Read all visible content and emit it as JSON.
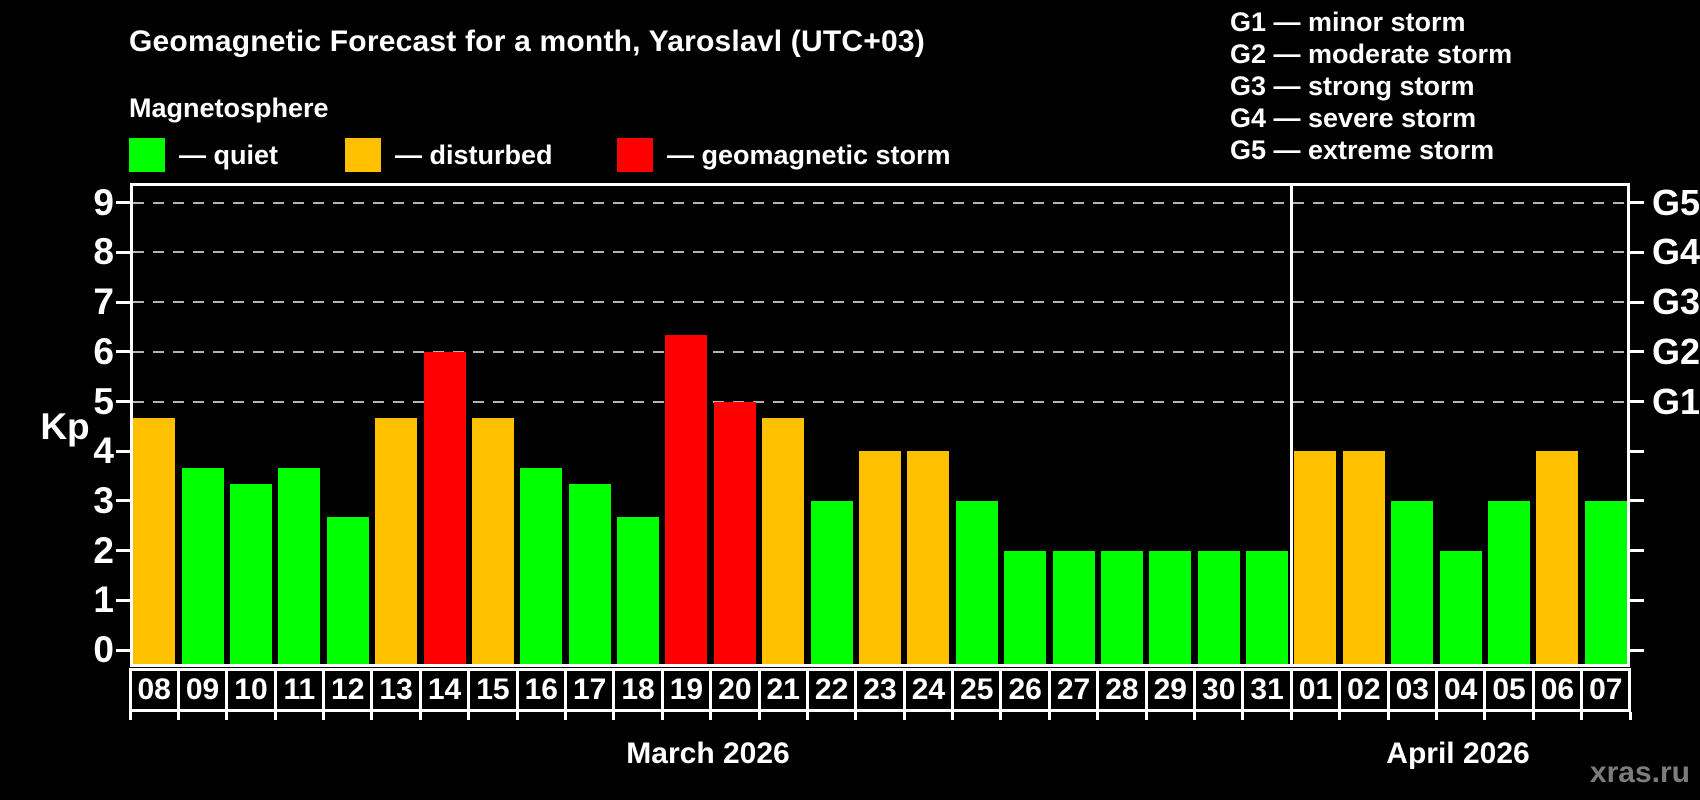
{
  "header": {
    "title": "Geomagnetic Forecast for a month, Yaroslavl (UTC+03)",
    "subtitle": "Magnetosphere"
  },
  "legend": {
    "items": [
      {
        "key": "quiet",
        "label": "— quiet",
        "color": "#00FF00"
      },
      {
        "key": "disturbed",
        "label": "— disturbed",
        "color": "#FFC000"
      },
      {
        "key": "storm",
        "label": "— geomagnetic storm",
        "color": "#FF0000"
      }
    ]
  },
  "g_legend": {
    "lines": [
      "G1 — minor storm",
      "G2 — moderate storm",
      "G3 — strong storm",
      "G4 — severe storm",
      "G5 — extreme storm"
    ]
  },
  "watermark": "xras.ru",
  "chart_data": {
    "type": "bar",
    "title": "Geomagnetic Forecast for a month, Yaroslavl (UTC+03)",
    "ylabel": "Kp",
    "ylim": [
      0,
      9
    ],
    "yticks": [
      0,
      1,
      2,
      3,
      4,
      5,
      6,
      7,
      8,
      9
    ],
    "grid_kp": [
      5,
      6,
      7,
      8,
      9
    ],
    "grid_on": true,
    "legend_position": "top-left",
    "g_scale": [
      {
        "label": "G1",
        "kp": 5
      },
      {
        "label": "G2",
        "kp": 6
      },
      {
        "label": "G3",
        "kp": 7
      },
      {
        "label": "G4",
        "kp": 8
      },
      {
        "label": "G5",
        "kp": 9
      }
    ],
    "status_colors": {
      "quiet": "#00FF00",
      "disturbed": "#FFC000",
      "storm": "#FF0000"
    },
    "months": [
      {
        "label": "March 2026",
        "days": [
          {
            "day": "08",
            "kp": 4.67,
            "status": "disturbed"
          },
          {
            "day": "09",
            "kp": 3.67,
            "status": "quiet"
          },
          {
            "day": "10",
            "kp": 3.33,
            "status": "quiet"
          },
          {
            "day": "11",
            "kp": 3.67,
            "status": "quiet"
          },
          {
            "day": "12",
            "kp": 2.67,
            "status": "quiet"
          },
          {
            "day": "13",
            "kp": 4.67,
            "status": "disturbed"
          },
          {
            "day": "14",
            "kp": 6.0,
            "status": "storm"
          },
          {
            "day": "15",
            "kp": 4.67,
            "status": "disturbed"
          },
          {
            "day": "16",
            "kp": 3.67,
            "status": "quiet"
          },
          {
            "day": "17",
            "kp": 3.33,
            "status": "quiet"
          },
          {
            "day": "18",
            "kp": 2.67,
            "status": "quiet"
          },
          {
            "day": "19",
            "kp": 6.33,
            "status": "storm"
          },
          {
            "day": "20",
            "kp": 5.0,
            "status": "storm"
          },
          {
            "day": "21",
            "kp": 4.67,
            "status": "disturbed"
          },
          {
            "day": "22",
            "kp": 3.0,
            "status": "quiet"
          },
          {
            "day": "23",
            "kp": 4.0,
            "status": "disturbed"
          },
          {
            "day": "24",
            "kp": 4.0,
            "status": "disturbed"
          },
          {
            "day": "25",
            "kp": 3.0,
            "status": "quiet"
          },
          {
            "day": "26",
            "kp": 2.0,
            "status": "quiet"
          },
          {
            "day": "27",
            "kp": 2.0,
            "status": "quiet"
          },
          {
            "day": "28",
            "kp": 2.0,
            "status": "quiet"
          },
          {
            "day": "29",
            "kp": 2.0,
            "status": "quiet"
          },
          {
            "day": "30",
            "kp": 2.0,
            "status": "quiet"
          },
          {
            "day": "31",
            "kp": 2.0,
            "status": "quiet"
          }
        ]
      },
      {
        "label": "April 2026",
        "days": [
          {
            "day": "01",
            "kp": 4.0,
            "status": "disturbed"
          },
          {
            "day": "02",
            "kp": 4.0,
            "status": "disturbed"
          },
          {
            "day": "03",
            "kp": 3.0,
            "status": "quiet"
          },
          {
            "day": "04",
            "kp": 2.0,
            "status": "quiet"
          },
          {
            "day": "05",
            "kp": 3.0,
            "status": "quiet"
          },
          {
            "day": "06",
            "kp": 4.0,
            "status": "disturbed"
          },
          {
            "day": "07",
            "kp": 3.0,
            "status": "quiet"
          }
        ]
      }
    ]
  }
}
